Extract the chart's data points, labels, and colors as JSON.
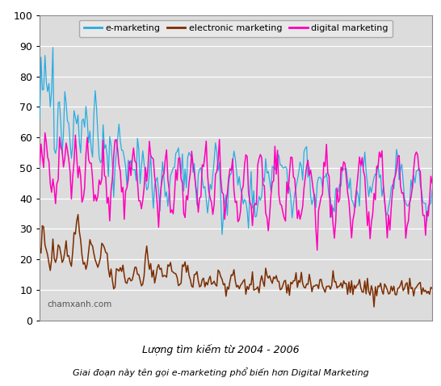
{
  "title1": "Lượng tìm kiếm từ 2004 - 2006",
  "title2": "Giai đoạn này tên gọi e-marketing phổ biến hơn Digital Marketing",
  "watermark": "chamxanh.com",
  "legend": [
    "e-marketing",
    "electronic marketing",
    "digital marketing"
  ],
  "colors": {
    "e_marketing": "#29ABE2",
    "electronic_marketing": "#7B2D00",
    "digital_marketing": "#FF00BB"
  },
  "ylim": [
    0,
    100
  ],
  "bg_color": "#DCDCDC",
  "e_marketing": [
    65,
    88,
    75,
    80,
    85,
    82,
    75,
    78,
    72,
    68,
    91,
    55,
    52,
    60,
    68,
    72,
    62,
    57,
    64,
    72,
    70,
    65,
    63,
    57,
    56,
    63,
    73,
    71,
    70,
    69,
    60,
    55,
    65,
    67,
    64,
    70,
    68,
    60,
    62,
    58,
    55,
    68,
    72,
    69,
    62,
    55,
    52,
    47,
    72,
    55,
    57,
    52,
    50,
    55,
    55,
    52,
    40,
    52,
    55,
    60,
    62,
    58,
    56,
    54,
    52,
    50,
    48,
    50,
    54,
    55,
    50,
    48,
    46,
    50,
    56,
    52,
    46,
    51,
    57,
    53,
    50,
    47,
    44,
    48,
    50,
    46,
    42,
    44,
    47,
    46,
    43,
    39,
    47,
    50,
    46,
    43,
    40,
    41,
    44,
    47,
    52,
    53,
    50,
    55,
    56,
    58,
    54,
    50,
    47,
    44,
    46,
    45,
    50,
    52,
    53,
    55,
    52,
    49,
    47,
    41,
    44,
    46,
    50,
    47,
    45,
    43,
    41,
    39,
    41,
    44,
    47,
    50,
    52,
    54,
    55,
    49,
    47,
    43,
    30,
    32,
    36,
    40,
    41,
    43,
    46,
    48,
    50,
    52,
    53,
    51,
    49,
    47,
    45,
    43,
    41,
    39,
    37,
    35,
    33,
    40,
    48,
    43,
    41,
    39,
    37,
    35,
    39,
    41,
    43,
    46,
    50,
    52,
    49,
    47,
    46,
    45,
    50,
    51,
    53,
    55,
    57,
    54,
    49,
    51,
    53,
    51,
    49,
    47,
    45,
    43,
    41,
    39,
    41,
    43,
    45,
    47,
    50,
    51,
    53,
    50,
    54,
    58,
    55,
    49,
    47,
    44,
    41,
    38,
    37,
    39,
    41,
    43,
    45,
    47,
    49,
    51,
    49,
    47,
    45,
    42,
    40,
    38,
    36,
    38,
    40,
    42,
    44,
    46,
    48,
    50,
    52,
    50,
    47,
    45,
    42,
    40,
    38,
    36,
    38,
    40,
    42,
    44,
    45,
    50,
    51,
    53,
    52,
    49,
    46,
    43,
    41,
    43,
    46,
    48,
    50,
    52,
    53,
    49,
    46,
    44,
    42,
    40,
    37,
    35,
    37,
    39,
    42,
    44,
    47,
    50,
    52,
    54,
    52,
    49,
    47,
    43,
    40,
    38,
    36,
    38,
    40,
    42,
    44,
    45,
    49,
    51,
    52,
    49,
    46,
    44,
    41,
    38,
    36,
    34,
    36,
    38,
    40,
    42
  ],
  "electronic_marketing": [
    22,
    26,
    30,
    28,
    25,
    22,
    20,
    18,
    16,
    18,
    25,
    20,
    18,
    22,
    25,
    24,
    22,
    20,
    18,
    22,
    25,
    23,
    22,
    20,
    18,
    20,
    25,
    28,
    32,
    35,
    30,
    25,
    22,
    20,
    18,
    17,
    18,
    22,
    25,
    24,
    23,
    22,
    20,
    18,
    17,
    18,
    20,
    22,
    25,
    23,
    22,
    20,
    18,
    16,
    15,
    12,
    10,
    12,
    15,
    16,
    17,
    18,
    17,
    16,
    15,
    14,
    13,
    12,
    13,
    14,
    15,
    16,
    17,
    18,
    16,
    15,
    14,
    13,
    14,
    16,
    22,
    24,
    20,
    18,
    17,
    16,
    15,
    14,
    15,
    16,
    17,
    18,
    17,
    16,
    15,
    14,
    15,
    16,
    17,
    18,
    17,
    16,
    15,
    14,
    13,
    12,
    13,
    14,
    15,
    16,
    17,
    16,
    15,
    14,
    13,
    12,
    13,
    14,
    15,
    16,
    15,
    14,
    13,
    12,
    11,
    12,
    13,
    14,
    15,
    14,
    13,
    12,
    11,
    12,
    13,
    14,
    15,
    14,
    13,
    12,
    11,
    10,
    11,
    12,
    13,
    14,
    15,
    14,
    13,
    12,
    11,
    10,
    11,
    12,
    13,
    12,
    11,
    10,
    11,
    12,
    13,
    14,
    13,
    12,
    11,
    10,
    11,
    12,
    13,
    14,
    15,
    16,
    15,
    14,
    13,
    12,
    13,
    14,
    15,
    14,
    13,
    12,
    11,
    10,
    11,
    12,
    13,
    12,
    11,
    10,
    11,
    12,
    13,
    14,
    13,
    12,
    11,
    10,
    11,
    10,
    11,
    12,
    13,
    14,
    13,
    12,
    11,
    10,
    11,
    10,
    11,
    12,
    13,
    12,
    11,
    10,
    11,
    12,
    11,
    10,
    11,
    12,
    13,
    14,
    13,
    12,
    11,
    10,
    11,
    10,
    11,
    12,
    11,
    10,
    11,
    10,
    11,
    10,
    11,
    10,
    11,
    12,
    11,
    10,
    11,
    10,
    11,
    10,
    11,
    10,
    11,
    10,
    11,
    10,
    11,
    10,
    11,
    10,
    11,
    10,
    11,
    10,
    11,
    10,
    11,
    10,
    11,
    10,
    11,
    10,
    11,
    10,
    11,
    10,
    11,
    10,
    11,
    10,
    11,
    10,
    11,
    10,
    11,
    10,
    11,
    10,
    11,
    10,
    11,
    10,
    11,
    10,
    11,
    10,
    11,
    10,
    11,
    10
  ],
  "digital_marketing": [
    48,
    60,
    55,
    58,
    62,
    58,
    55,
    52,
    47,
    44,
    50,
    46,
    43,
    42,
    44,
    60,
    57,
    52,
    49,
    55,
    58,
    55,
    52,
    48,
    44,
    49,
    57,
    60,
    55,
    50,
    45,
    44,
    40,
    38,
    45,
    52,
    58,
    54,
    50,
    47,
    44,
    42,
    40,
    37,
    40,
    43,
    46,
    52,
    55,
    50,
    47,
    42,
    38,
    35,
    42,
    46,
    50,
    54,
    57,
    53,
    50,
    48,
    44,
    42,
    38,
    40,
    43,
    46,
    49,
    52,
    55,
    55,
    53,
    50,
    46,
    42,
    38,
    36,
    38,
    42,
    45,
    48,
    52,
    55,
    56,
    53,
    50,
    46,
    42,
    38,
    35,
    38,
    42,
    46,
    49,
    52,
    54,
    47,
    44,
    38,
    35,
    38,
    42,
    46,
    51,
    55,
    51,
    47,
    42,
    38,
    36,
    38,
    42,
    45,
    49,
    52,
    54,
    48,
    42,
    38,
    35,
    38,
    42,
    46,
    49,
    52,
    54,
    47,
    42,
    38,
    35,
    38,
    42,
    46,
    49,
    52,
    54,
    47,
    42,
    38,
    35,
    38,
    42,
    46,
    49,
    52,
    54,
    44,
    42,
    38,
    34,
    36,
    40,
    44,
    47,
    50,
    52,
    55,
    44,
    40,
    36,
    33,
    36,
    40,
    44,
    47,
    51,
    55,
    53,
    44,
    40,
    36,
    33,
    30,
    36,
    40,
    44,
    47,
    51,
    55,
    52,
    44,
    40,
    36,
    33,
    30,
    36,
    40,
    44,
    47,
    50,
    53,
    47,
    44,
    40,
    36,
    33,
    30,
    33,
    36,
    40,
    44,
    47,
    51,
    52,
    47,
    44,
    40,
    36,
    33,
    30,
    33,
    36,
    40,
    44,
    47,
    51,
    52,
    47,
    44,
    40,
    36,
    33,
    30,
    33,
    36,
    40,
    44,
    47,
    51,
    52,
    47,
    44,
    40,
    36,
    33,
    30,
    33,
    36,
    40,
    44,
    47,
    51,
    52,
    54,
    48,
    44,
    40,
    36,
    33,
    30,
    33,
    36,
    40,
    44,
    47,
    51,
    52,
    54,
    48,
    44,
    40,
    36,
    33,
    30,
    33,
    36,
    40,
    44,
    47,
    51,
    52,
    54,
    48,
    44,
    40,
    36,
    33,
    30,
    33,
    36,
    40,
    44,
    47,
    51,
    52,
    54,
    48,
    44,
    40,
    36,
    33,
    30,
    33,
    36,
    40,
    44,
    47
  ]
}
